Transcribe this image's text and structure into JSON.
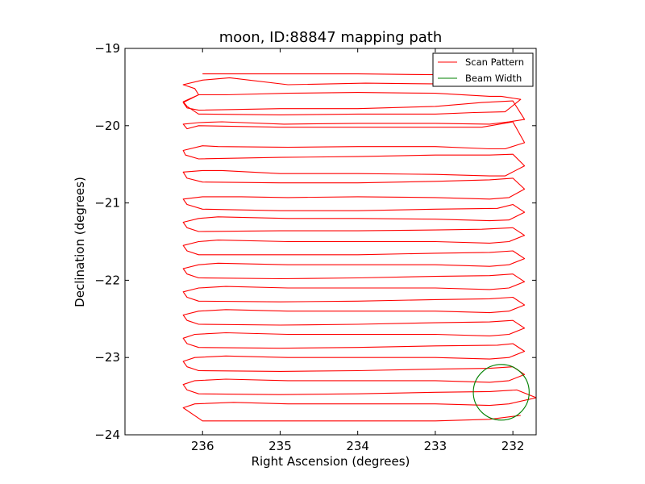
{
  "chart_data": {
    "type": "line",
    "title": "moon, ID:88847 mapping path",
    "xlabel": "Right Ascension (degrees)",
    "ylabel": "Declination (degrees)",
    "xlim": [
      237.0,
      231.7
    ],
    "ylim": [
      -24,
      -19
    ],
    "x_reversed": true,
    "xticks": [
      236,
      235,
      234,
      233,
      232
    ],
    "xtick_labels": [
      "236",
      "235",
      "234",
      "233",
      "232"
    ],
    "yticks": [
      -19,
      -20,
      -21,
      -22,
      -23,
      -24
    ],
    "ytick_labels": [
      "−19",
      "−20",
      "−21",
      "−22",
      "−23",
      "−24"
    ],
    "grid": false,
    "legend": {
      "placement": "top-right",
      "entries": [
        "Scan Pattern",
        "Beam Width"
      ]
    },
    "colors": {
      "scan": "#ff0000",
      "beam": "#008000"
    },
    "series": [
      {
        "name": "Scan Pattern",
        "x": [
          236.0,
          235.0,
          234.0,
          233.0,
          232.6,
          232.1,
          231.85,
          232.1,
          232.2,
          232.9,
          233.9,
          234.9,
          235.65,
          236.0,
          236.25,
          236.1,
          236.05,
          236.25,
          236.2,
          236.05,
          235.0,
          234.0,
          233.0,
          232.5,
          232.1,
          231.9,
          232.15,
          232.3,
          233.0,
          234.0,
          234.9,
          235.7,
          236.05,
          236.25,
          236.2,
          236.05,
          235.0,
          234.0,
          233.0,
          232.4,
          232.0,
          231.85,
          232.05,
          232.3,
          233.0,
          234.0,
          234.95,
          235.75,
          236.05,
          236.25,
          236.2,
          236.05,
          235.0,
          234.0,
          233.0,
          232.4,
          232.0,
          231.85,
          232.1,
          232.3,
          233.0,
          234.0,
          234.9,
          235.8,
          236.0,
          236.25,
          236.22,
          236.05,
          235.0,
          234.0,
          233.0,
          232.3,
          232.0,
          231.85,
          232.1,
          232.3,
          233.0,
          234.0,
          235.0,
          235.75,
          236.0,
          236.25,
          236.2,
          236.0,
          235.0,
          234.0,
          233.0,
          232.3,
          232.0,
          231.85,
          232.05,
          232.3,
          233.0,
          234.0,
          234.9,
          235.5,
          236.0,
          236.25,
          236.2,
          236.0,
          235.0,
          234.0,
          233.0,
          232.2,
          232.0,
          231.85,
          232.05,
          232.3,
          233.0,
          234.0,
          234.9,
          235.8,
          236.05,
          236.25,
          236.2,
          236.05,
          235.0,
          234.0,
          233.0,
          232.4,
          232.0,
          231.85,
          232.05,
          232.3,
          233.0,
          234.0,
          234.9,
          235.8,
          236.05,
          236.25,
          236.2,
          236.05,
          235.0,
          234.0,
          233.0,
          232.3,
          232.0,
          231.85,
          232.05,
          232.3,
          233.0,
          234.0,
          234.9,
          235.8,
          236.05,
          236.25,
          236.2,
          236.05,
          235.0,
          234.0,
          233.0,
          232.3,
          232.0,
          231.85,
          232.05,
          232.3,
          233.0,
          234.0,
          234.9,
          235.7,
          236.05,
          236.25,
          236.2,
          236.05,
          235.0,
          234.0,
          233.0,
          232.3,
          232.0,
          231.85,
          232.05,
          232.3,
          233.0,
          234.0,
          234.9,
          235.7,
          236.05,
          236.25,
          236.2,
          236.05,
          235.0,
          234.0,
          233.0,
          232.3,
          232.0,
          231.85,
          232.05,
          232.3,
          233.0,
          234.0,
          234.9,
          235.7,
          236.1,
          236.25,
          236.2,
          236.05,
          235.0,
          234.0,
          233.0,
          232.2,
          232.0,
          231.85,
          232.05,
          232.3,
          233.0,
          234.0,
          234.9,
          235.7,
          236.1,
          236.25,
          236.2,
          236.05,
          235.0,
          234.0,
          233.0,
          232.3,
          232.0,
          231.85,
          232.05,
          232.3,
          233.0,
          234.0,
          234.9,
          235.7,
          236.1,
          236.25,
          236.2,
          236.05,
          235.0,
          234.0,
          233.0,
          232.3,
          231.95,
          231.7,
          232.05,
          232.3,
          233.0,
          234.0,
          234.9,
          235.6,
          236.1,
          236.25,
          236.0,
          235.0,
          234.0,
          233.0,
          232.3,
          231.9
        ],
        "y": [
          -19.33,
          -19.33,
          -19.33,
          -19.34,
          -19.32,
          -19.33,
          -19.36,
          -19.48,
          -19.47,
          -19.46,
          -19.45,
          -19.47,
          -19.38,
          -19.41,
          -19.47,
          -19.52,
          -19.6,
          -19.69,
          -19.75,
          -19.85,
          -19.86,
          -19.85,
          -19.85,
          -19.83,
          -19.82,
          -19.66,
          -19.62,
          -19.62,
          -19.58,
          -19.57,
          -19.58,
          -19.6,
          -19.6,
          -19.7,
          -19.77,
          -19.8,
          -19.78,
          -19.78,
          -19.75,
          -19.7,
          -19.68,
          -19.92,
          -19.95,
          -19.98,
          -19.97,
          -19.97,
          -19.98,
          -19.95,
          -19.96,
          -19.98,
          -20.04,
          -20.0,
          -20.02,
          -20.02,
          -20.02,
          -20.02,
          -19.95,
          -20.22,
          -20.3,
          -20.3,
          -20.27,
          -20.27,
          -20.28,
          -20.27,
          -20.26,
          -20.32,
          -20.38,
          -20.43,
          -20.41,
          -20.4,
          -20.38,
          -20.38,
          -20.37,
          -20.52,
          -20.65,
          -20.65,
          -20.63,
          -20.62,
          -20.62,
          -20.58,
          -20.58,
          -20.6,
          -20.68,
          -20.73,
          -20.74,
          -20.74,
          -20.72,
          -20.7,
          -20.68,
          -20.82,
          -20.93,
          -20.95,
          -20.93,
          -20.92,
          -20.93,
          -20.92,
          -20.92,
          -20.95,
          -21.02,
          -21.08,
          -21.1,
          -21.1,
          -21.08,
          -21.07,
          -21.02,
          -21.12,
          -21.22,
          -21.23,
          -21.21,
          -21.2,
          -21.2,
          -21.18,
          -21.2,
          -21.25,
          -21.32,
          -21.37,
          -21.36,
          -21.36,
          -21.35,
          -21.34,
          -21.32,
          -21.42,
          -21.5,
          -21.52,
          -21.5,
          -21.5,
          -21.5,
          -21.48,
          -21.5,
          -21.55,
          -21.62,
          -21.67,
          -21.67,
          -21.67,
          -21.65,
          -21.64,
          -21.62,
          -21.72,
          -21.8,
          -21.82,
          -21.8,
          -21.8,
          -21.8,
          -21.78,
          -21.8,
          -21.85,
          -21.92,
          -21.97,
          -21.98,
          -21.97,
          -21.95,
          -21.94,
          -21.92,
          -22.02,
          -22.1,
          -22.12,
          -22.1,
          -22.1,
          -22.1,
          -22.08,
          -22.1,
          -22.15,
          -22.22,
          -22.27,
          -22.28,
          -22.27,
          -22.25,
          -22.24,
          -22.22,
          -22.32,
          -22.4,
          -22.42,
          -22.4,
          -22.4,
          -22.4,
          -22.38,
          -22.4,
          -22.45,
          -22.52,
          -22.57,
          -22.58,
          -22.57,
          -22.55,
          -22.54,
          -22.52,
          -22.62,
          -22.7,
          -22.72,
          -22.7,
          -22.7,
          -22.7,
          -22.68,
          -22.7,
          -22.75,
          -22.82,
          -22.87,
          -22.88,
          -22.87,
          -22.85,
          -22.84,
          -22.82,
          -22.92,
          -23.0,
          -23.02,
          -23.0,
          -23.0,
          -23.0,
          -22.98,
          -23.0,
          -23.05,
          -23.12,
          -23.17,
          -23.18,
          -23.17,
          -23.15,
          -23.14,
          -23.12,
          -23.22,
          -23.3,
          -23.32,
          -23.3,
          -23.3,
          -23.3,
          -23.28,
          -23.3,
          -23.35,
          -23.42,
          -23.47,
          -23.48,
          -23.47,
          -23.45,
          -23.44,
          -23.42,
          -23.52,
          -23.6,
          -23.62,
          -23.6,
          -23.6,
          -23.6,
          -23.58,
          -23.6,
          -23.65,
          -23.82,
          -23.82,
          -23.82,
          -23.82,
          -23.8,
          -23.75
        ]
      },
      {
        "name": "Beam Width",
        "shape": "circle",
        "center": [
          232.15,
          -23.45
        ],
        "radius": 0.36
      }
    ]
  }
}
